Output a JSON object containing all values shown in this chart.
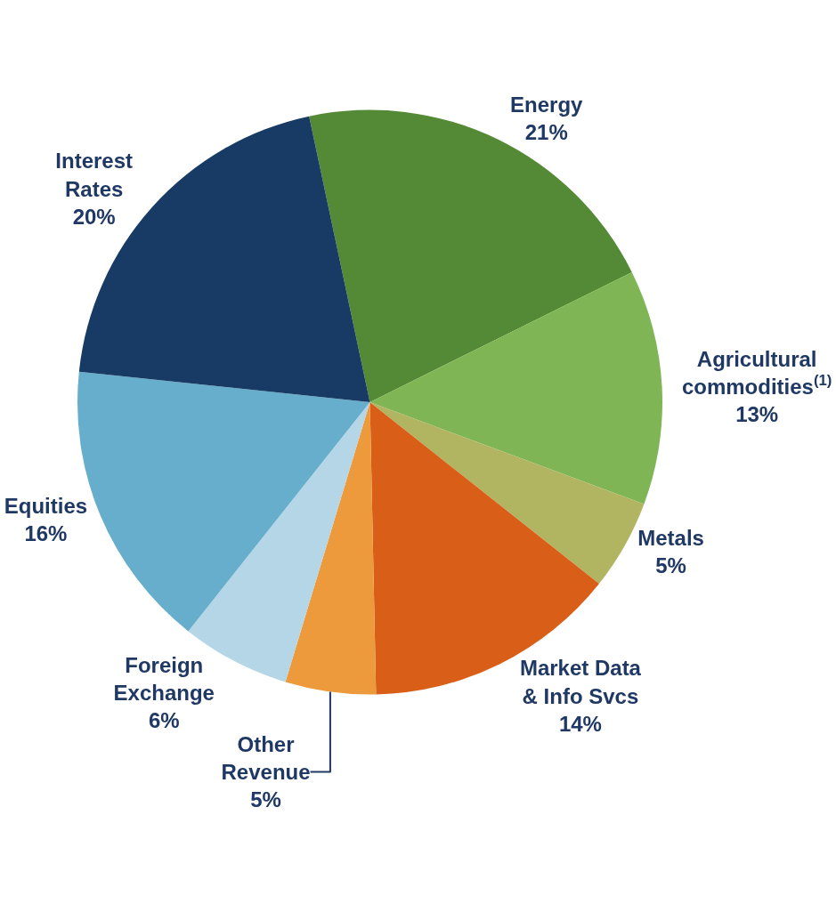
{
  "chart_data": {
    "type": "pie",
    "categories": [
      "Energy",
      "Agricultural commodities$^{(1)}$",
      "Metals",
      "Market Data & Info Svcs",
      "Other Revenue",
      "Foreign Exchange",
      "Equities",
      "Interest Rates"
    ],
    "values": [
      21,
      13,
      5,
      14,
      5,
      6,
      16,
      20
    ],
    "value_labels": [
      "21%",
      "13%",
      "5%",
      "14%",
      "5%",
      "6%",
      "16%",
      "20%"
    ],
    "colors": [
      "#548a35",
      "#7fb554",
      "#b1b562",
      "#d95f18",
      "#ec9a3c",
      "#b4d6e6",
      "#67adcc",
      "#173b65"
    ],
    "data_labels": true,
    "legend": false
  }
}
